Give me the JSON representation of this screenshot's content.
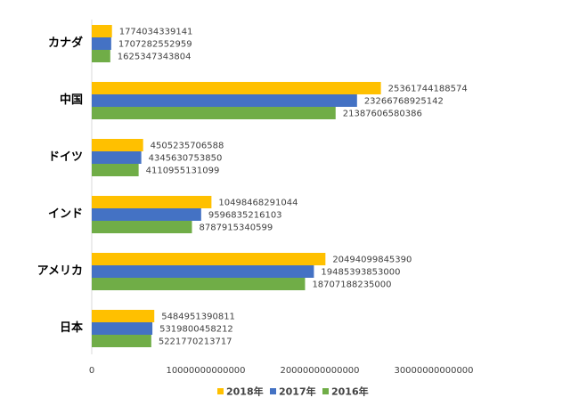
{
  "chart_data": {
    "type": "bar",
    "orientation": "horizontal",
    "title": "",
    "categories": [
      "カナダ",
      "中国",
      "ドイツ",
      "インド",
      "アメリカ",
      "日本"
    ],
    "series": [
      {
        "name": "2018年",
        "color": "#FFC000",
        "values": [
          1774034339141,
          25361744188574,
          4505235706588,
          10498468291044,
          20494099845390,
          5484951390811
        ]
      },
      {
        "name": "2017年",
        "color": "#4472C4",
        "values": [
          1707282552959,
          23266768925142,
          4345630753850,
          9596835216103,
          19485393853000,
          5319800458212
        ]
      },
      {
        "name": "2016年",
        "color": "#70AD47",
        "values": [
          1625347343804,
          21387606580386,
          4110955131099,
          8787915340599,
          18707188235000,
          5221770213717
        ]
      }
    ],
    "xlim": [
      0,
      30000000000000
    ],
    "xticks": [
      "0",
      "10000000000000",
      "20000000000000",
      "30000000000000"
    ],
    "legend": "bottom",
    "grid": false
  }
}
